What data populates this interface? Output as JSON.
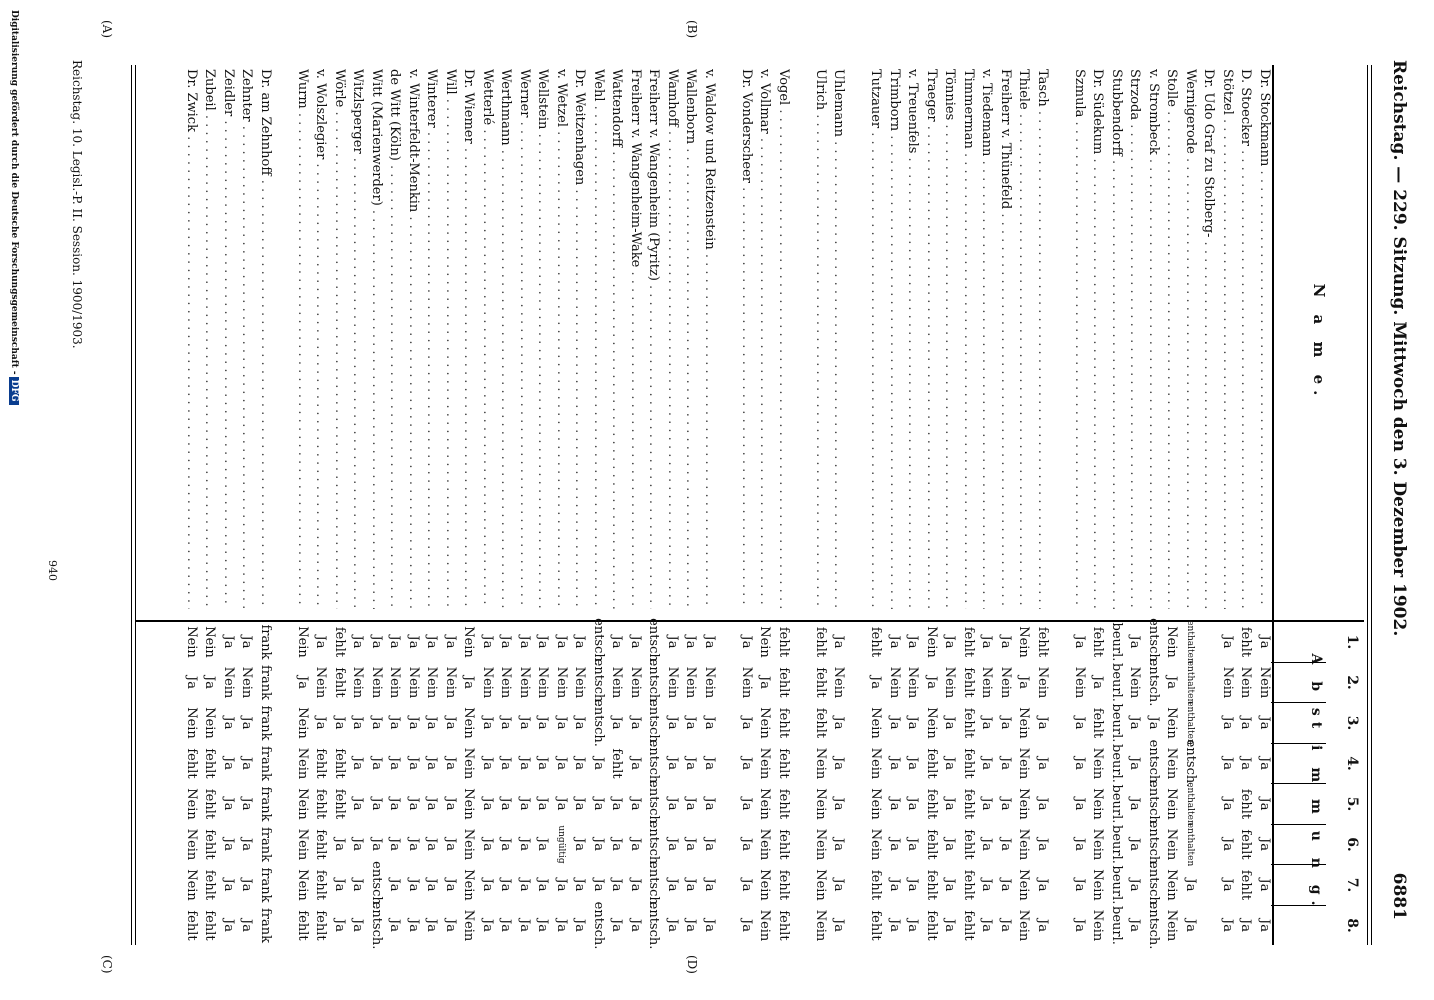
{
  "header": {
    "left": "Reichstag. — 229. Sitzung. Mittwoch den 3. Dezember 1902.",
    "right": "6881"
  },
  "margin_marks": {
    "a": "(A)",
    "b": "(B)",
    "c": "(C)",
    "d": "(D)"
  },
  "table": {
    "name_header": "N a m e.",
    "abstimmung_header": "A b st i m m u n g.",
    "columns": [
      "1.",
      "2.",
      "3.",
      "4.",
      "5.",
      "6.",
      "7.",
      "8."
    ],
    "rows": [
      {
        "name": "Dr. Stockmann",
        "v": [
          "Ja",
          "Nein",
          "Ja",
          "Ja",
          "Ja",
          "Ja",
          "Ja",
          "Ja"
        ]
      },
      {
        "name": "D. Stoecker",
        "v": [
          "fehlt",
          "Nein",
          "Ja",
          "Ja",
          "fehlt",
          "fehlt",
          "fehlt",
          "Ja"
        ]
      },
      {
        "name": "Stötzel",
        "v": [
          "Ja",
          "Nein",
          "Ja",
          "Ja",
          "Ja",
          "Ja",
          "Ja",
          "Ja"
        ]
      },
      {
        "name": "Dr. Udo Graf zu Stolberg-",
        "v": [
          "",
          "",
          "",
          "",
          "",
          "",
          "",
          ""
        ]
      },
      {
        "name": "Wernigerode",
        "v": [
          "enthalten",
          "enthalten",
          "enthalten",
          "entsch.",
          "enthalten",
          "enthalten",
          "Ja",
          "Ja"
        ]
      },
      {
        "name": "Stolle",
        "v": [
          "Nein",
          "Ja",
          "Nein",
          "Nein",
          "Nein",
          "Nein",
          "Nein",
          "Nein"
        ]
      },
      {
        "name": "v. Strombeck",
        "v": [
          "entsch.",
          "entsch.",
          "Ja",
          "entsch.",
          "entsch.",
          "entsch.",
          "entsch.",
          "entsch."
        ]
      },
      {
        "name": "Strzoda",
        "v": [
          "Ja",
          "Nein",
          "Ja",
          "Ja",
          "Ja",
          "Ja",
          "Ja",
          "Ja"
        ]
      },
      {
        "name": "Stubbendorff",
        "v": [
          "beurl.",
          "beurl.",
          "beurl.",
          "beurl.",
          "beurl.",
          "beurl.",
          "beurl.",
          "beurl."
        ]
      },
      {
        "name": "Dr. Südekum",
        "v": [
          "fehlt",
          "Ja",
          "fehlt",
          "Nein",
          "Nein",
          "Nein",
          "Nein",
          "Nein"
        ]
      },
      {
        "name": "Szmula",
        "v": [
          "Ja",
          "Nein",
          "Ja",
          "Ja",
          "Ja",
          "Ja",
          "Ja",
          "Ja"
        ]
      },
      {
        "name": "",
        "v": [
          "",
          "",
          "",
          "",
          "",
          "",
          "",
          ""
        ]
      },
      {
        "name": "Tasch",
        "v": [
          "fehlt",
          "Nein",
          "Ja",
          "Ja",
          "Ja",
          "Ja",
          "Ja",
          "Ja"
        ]
      },
      {
        "name": "Thiele",
        "v": [
          "Nein",
          "Ja",
          "Nein",
          "Nein",
          "Nein",
          "Nein",
          "Nein",
          "Nein"
        ]
      },
      {
        "name": "Freiherr v. Thünefeld",
        "v": [
          "Ja",
          "Nein",
          "Ja",
          "Ja",
          "Ja",
          "Ja",
          "Ja",
          "Ja"
        ]
      },
      {
        "name": "v. Tiedemann",
        "v": [
          "Ja",
          "Nein",
          "Ja",
          "Ja",
          "Ja",
          "Ja",
          "Ja",
          "Ja"
        ]
      },
      {
        "name": "Timmerman",
        "v": [
          "fehlt",
          "fehlt",
          "fehlt",
          "fehlt",
          "fehlt",
          "fehlt",
          "fehlt",
          "fehlt"
        ]
      },
      {
        "name": "Tönnies",
        "v": [
          "Ja",
          "Nein",
          "Ja",
          "Ja",
          "Ja",
          "Ja",
          "Ja",
          "Ja"
        ]
      },
      {
        "name": "Traeger",
        "v": [
          "Nein",
          "Ja",
          "Nein",
          "fehlt",
          "fehlt",
          "fehlt",
          "fehlt",
          "fehlt"
        ]
      },
      {
        "name": "v. Treuenfels",
        "v": [
          "Ja",
          "Nein",
          "Ja",
          "Ja",
          "Ja",
          "Ja",
          "Ja",
          "Ja"
        ]
      },
      {
        "name": "Trimborn",
        "v": [
          "Ja",
          "Nein",
          "Ja",
          "Ja",
          "Ja",
          "Ja",
          "Ja",
          "Ja"
        ]
      },
      {
        "name": "Tutzauer",
        "v": [
          "fehlt",
          "Ja",
          "Nein",
          "Nein",
          "Nein",
          "Nein",
          "fehlt",
          "fehlt"
        ]
      },
      {
        "name": "",
        "v": [
          "",
          "",
          "",
          "",
          "",
          "",
          "",
          ""
        ]
      },
      {
        "name": "Uhlemann",
        "v": [
          "Ja",
          "Nein",
          "Ja",
          "Ja",
          "Ja",
          "Ja",
          "Ja",
          "Ja"
        ]
      },
      {
        "name": "Ulrich",
        "v": [
          "fehlt",
          "fehlt",
          "fehlt",
          "Nein",
          "Nein",
          "Nein",
          "Nein",
          "Nein"
        ]
      },
      {
        "name": "",
        "v": [
          "",
          "",
          "",
          "",
          "",
          "",
          "",
          ""
        ]
      },
      {
        "name": "Vogel",
        "v": [
          "fehlt",
          "fehlt",
          "fehlt",
          "fehlt",
          "fehlt",
          "fehlt",
          "fehlt",
          "fehlt"
        ]
      },
      {
        "name": "v. Vollmar",
        "v": [
          "Nein",
          "Ja",
          "Nein",
          "Nein",
          "Nein",
          "Nein",
          "Nein",
          "Nein"
        ]
      },
      {
        "name": "Dr. Vonderscheer",
        "v": [
          "Ja",
          "Nein",
          "Ja",
          "Ja",
          "Ja",
          "Ja",
          "Ja",
          "Ja"
        ]
      },
      {
        "name": "",
        "v": [
          "",
          "",
          "",
          "",
          "",
          "",
          "",
          ""
        ]
      },
      {
        "name": "v. Waldow und Reitzenstein",
        "v": [
          "Ja",
          "Nein",
          "Ja",
          "Ja",
          "Ja",
          "Ja",
          "Ja",
          "Ja"
        ]
      },
      {
        "name": "Wallenborn",
        "v": [
          "Ja",
          "Nein",
          "Ja",
          "Ja",
          "Ja",
          "Ja",
          "Ja",
          "Ja"
        ]
      },
      {
        "name": "Wamhoff",
        "v": [
          "Ja",
          "Nein",
          "Ja",
          "Ja",
          "Ja",
          "Ja",
          "Ja",
          "Ja"
        ]
      },
      {
        "name": "Freiherr v. Wangenheim (Pyritz)",
        "v": [
          "entsch.",
          "entsch.",
          "entsch.",
          "entsch.",
          "entsch.",
          "entsch.",
          "entsch.",
          "entsch."
        ]
      },
      {
        "name": "Freiherr v. Wangenheim-Wake",
        "v": [
          "Ja",
          "Nein",
          "Ja",
          "Ja",
          "Ja",
          "Ja",
          "Ja",
          "Ja"
        ]
      },
      {
        "name": "Wattendorff",
        "v": [
          "Ja",
          "Nein",
          "Ja",
          "fehlt",
          "Ja",
          "Ja",
          "Ja",
          "Ja"
        ]
      },
      {
        "name": "Wehl",
        "v": [
          "entsch.",
          "entsch.",
          "entsch.",
          "Ja",
          "Ja",
          "Ja",
          "Ja",
          "entsch."
        ]
      },
      {
        "name": "Dr. Weitzenhagen",
        "v": [
          "Ja",
          "Nein",
          "Ja",
          "Ja",
          "Ja",
          "Ja",
          "Ja",
          "Ja"
        ]
      },
      {
        "name": "v. Wetzel",
        "v": [
          "Ja",
          "Nein",
          "Ja",
          "Ja",
          "Ja",
          "ungültig",
          "Ja",
          "Ja"
        ]
      },
      {
        "name": "Wellstein",
        "v": [
          "Ja",
          "Nein",
          "Ja",
          "Ja",
          "Ja",
          "Ja",
          "Ja",
          "Ja"
        ]
      },
      {
        "name": "Werner",
        "v": [
          "Ja",
          "Nein",
          "Ja",
          "Ja",
          "Ja",
          "Ja",
          "Ja",
          "Ja"
        ]
      },
      {
        "name": "Werthmann",
        "v": [
          "Ja",
          "Nein",
          "Ja",
          "Ja",
          "Ja",
          "Ja",
          "Ja",
          "Ja"
        ]
      },
      {
        "name": "Wetterlé",
        "v": [
          "Ja",
          "Nein",
          "Ja",
          "Ja",
          "Ja",
          "Ja",
          "Ja",
          "Ja"
        ]
      },
      {
        "name": "Dr. Wiemer",
        "v": [
          "Nein",
          "Ja",
          "Nein",
          "Nein",
          "Nein",
          "Nein",
          "Nein",
          "Nein"
        ]
      },
      {
        "name": "Will",
        "v": [
          "Ja",
          "Nein",
          "Ja",
          "Ja",
          "Ja",
          "Ja",
          "Ja",
          "Ja"
        ]
      },
      {
        "name": "Winterer",
        "v": [
          "Ja",
          "Nein",
          "Ja",
          "Ja",
          "Ja",
          "Ja",
          "Ja",
          "Ja"
        ]
      },
      {
        "name": "v. Winterfeldt-Menkin",
        "v": [
          "Ja",
          "Nein",
          "Ja",
          "Ja",
          "Ja",
          "Ja",
          "Ja",
          "Ja"
        ]
      },
      {
        "name": "de Witt (Köln)",
        "v": [
          "Ja",
          "Nein",
          "Ja",
          "Ja",
          "Ja",
          "Ja",
          "Ja",
          "Ja"
        ]
      },
      {
        "name": "Witt (Marienwerder)",
        "v": [
          "Ja",
          "Nein",
          "Ja",
          "Ja",
          "Ja",
          "Ja",
          "entsch.",
          "entsch."
        ]
      },
      {
        "name": "Witzlsperger",
        "v": [
          "Ja",
          "Nein",
          "Ja",
          "Ja",
          "Ja",
          "Ja",
          "Ja",
          "Ja"
        ]
      },
      {
        "name": "Wörle",
        "v": [
          "fehlt",
          "fehlt",
          "Ja",
          "fehlt",
          "fehlt",
          "Ja",
          "Ja",
          "Ja"
        ]
      },
      {
        "name": "v. Wolszlegier",
        "v": [
          "Ja",
          "Nein",
          "Ja",
          "fehlt",
          "fehlt",
          "fehlt",
          "fehlt",
          "fehlt"
        ]
      },
      {
        "name": "Wurm",
        "v": [
          "Nein",
          "Ja",
          "Nein",
          "Nein",
          "Nein",
          "Nein",
          "Nein",
          "fehlt"
        ]
      },
      {
        "name": "",
        "v": [
          "",
          "",
          "",
          "",
          "",
          "",
          "",
          ""
        ]
      },
      {
        "name": "Dr. am Zehnhoff",
        "v": [
          "frank",
          "frank",
          "frank",
          "frank",
          "frank",
          "frank",
          "frank",
          "frank"
        ]
      },
      {
        "name": "Zehnter",
        "v": [
          "Ja",
          "Nein",
          "Ja",
          "Ja",
          "Ja",
          "Ja",
          "Ja",
          "Ja"
        ]
      },
      {
        "name": "Zeidler",
        "v": [
          "Ja",
          "Nein",
          "Ja",
          "Ja",
          "Ja",
          "Ja",
          "Ja",
          "Ja"
        ]
      },
      {
        "name": "Zubeil",
        "v": [
          "Nein",
          "Ja",
          "Nein",
          "fehlt",
          "fehlt",
          "fehlt",
          "fehlt",
          "fehlt"
        ]
      },
      {
        "name": "Dr. Zwick",
        "v": [
          "Nein",
          "Ja",
          "Nein",
          "fehlt",
          "Nein",
          "Nein",
          "Nein",
          "fehlt"
        ]
      }
    ]
  },
  "footer": "Reichstag. 10. Legisl.-P. II. Session. 1900/1903.",
  "page_number": "940",
  "sidebar": {
    "text": "Digitalisierung gefördert durch die Deutsche Forschungsgemeinschaft -",
    "badge": "DFG"
  }
}
